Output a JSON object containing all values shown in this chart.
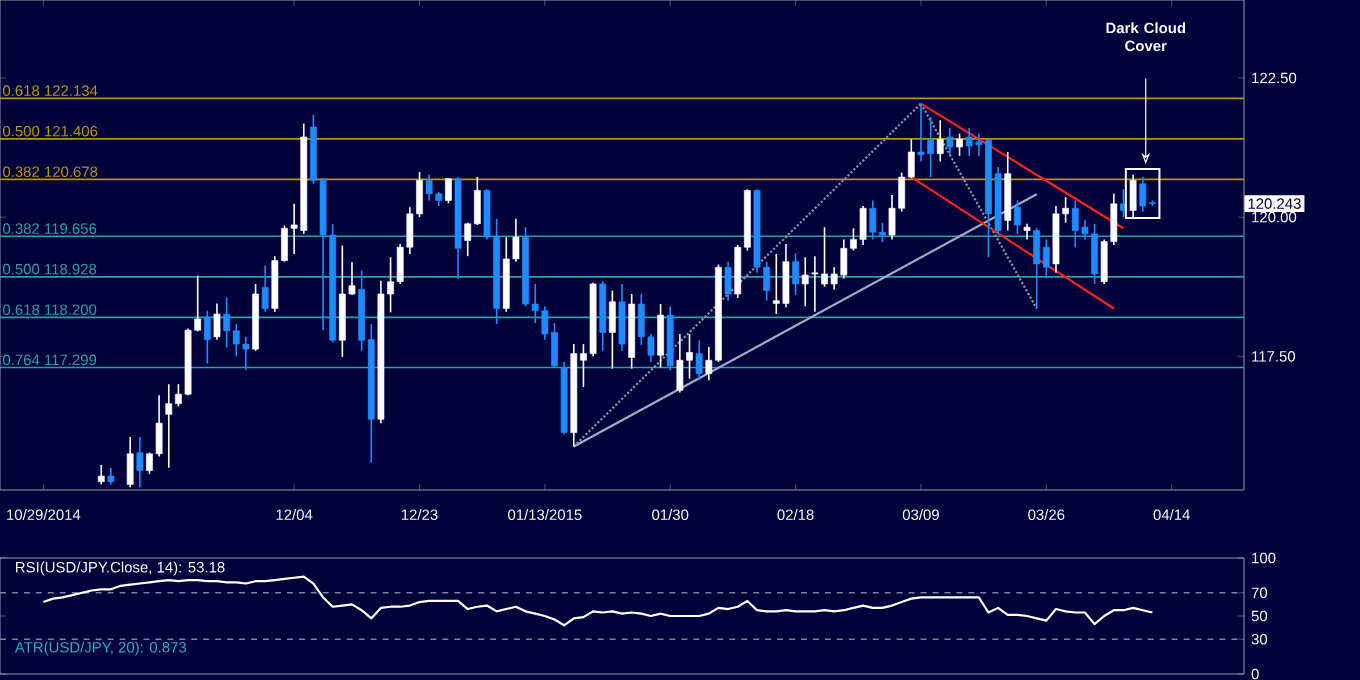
{
  "chart_data": [
    {
      "type": "candlestick",
      "categories": [
        "10/29/2014",
        null,
        null,
        null,
        null,
        null,
        null,
        null,
        null,
        null,
        null,
        null,
        null,
        null,
        null,
        null,
        null,
        null,
        null,
        null,
        null,
        null,
        null,
        null,
        null,
        null,
        "12/04",
        null,
        null,
        null,
        null,
        null,
        null,
        null,
        null,
        null,
        null,
        null,
        null,
        "12/23",
        null,
        null,
        null,
        null,
        null,
        null,
        null,
        null,
        null,
        null,
        null,
        null,
        "01/13/2015",
        null,
        null,
        null,
        null,
        null,
        null,
        null,
        null,
        null,
        null,
        null,
        null,
        "01/30",
        null,
        null,
        null,
        null,
        null,
        null,
        null,
        null,
        null,
        null,
        null,
        null,
        "02/18",
        null,
        null,
        null,
        null,
        null,
        null,
        null,
        null,
        null,
        null,
        null,
        null,
        "03/09",
        null,
        null,
        null,
        null,
        null,
        null,
        null,
        null,
        null,
        null,
        null,
        null,
        "03/26",
        null,
        null,
        null,
        null,
        null,
        null,
        null,
        null,
        null,
        null,
        null,
        null,
        "04/14",
        null,
        null,
        null,
        null,
        null,
        null,
        null
      ],
      "ohlc": [
        null,
        null,
        null,
        null,
        null,
        null,
        [
          115.25,
          115.55,
          115.2,
          115.35
        ],
        [
          115.35,
          115.5,
          115.2,
          115.25
        ],
        null,
        [
          115.2,
          116.05,
          115.15,
          115.75
        ],
        [
          115.77,
          116.05,
          115.15,
          115.45
        ],
        [
          115.45,
          115.77,
          115.39,
          115.75
        ],
        [
          115.75,
          116.8,
          115.7,
          116.3
        ],
        [
          116.46,
          117.0,
          115.5,
          116.65
        ],
        [
          116.65,
          117.0,
          116.6,
          116.82
        ],
        [
          116.82,
          118.0,
          116.8,
          117.97
        ],
        [
          117.97,
          118.95,
          117.95,
          118.17
        ],
        [
          118.2,
          118.32,
          117.37,
          117.8
        ],
        [
          117.85,
          118.45,
          117.8,
          118.26
        ],
        [
          118.26,
          118.56,
          117.66,
          117.96
        ],
        [
          117.96,
          118.08,
          117.5,
          117.72
        ],
        [
          117.72,
          117.85,
          117.25,
          117.63
        ],
        [
          117.63,
          118.8,
          117.6,
          118.62
        ],
        [
          118.74,
          119.13,
          118.3,
          118.36
        ],
        [
          118.36,
          119.3,
          118.3,
          119.22
        ],
        [
          119.22,
          119.85,
          119.2,
          119.8
        ],
        [
          119.8,
          120.24,
          119.34,
          119.86
        ],
        [
          119.76,
          121.68,
          119.7,
          121.44
        ],
        [
          121.62,
          121.84,
          120.6,
          120.66
        ],
        [
          120.66,
          120.7,
          117.97,
          119.68
        ],
        [
          119.68,
          119.88,
          117.75,
          117.79
        ],
        [
          117.79,
          119.49,
          117.49,
          118.62
        ],
        [
          118.62,
          119.19,
          118.6,
          118.77
        ],
        [
          118.7,
          119.04,
          117.6,
          117.79
        ],
        [
          117.8,
          118.08,
          115.59,
          116.37
        ],
        [
          116.37,
          118.86,
          116.3,
          118.62
        ],
        [
          118.62,
          119.28,
          118.29,
          118.84
        ],
        [
          118.84,
          119.52,
          118.8,
          119.46
        ],
        [
          119.46,
          120.18,
          119.34,
          120.06
        ],
        [
          120.06,
          120.81,
          120.0,
          120.66
        ],
        [
          120.66,
          120.76,
          120.3,
          120.42
        ],
        [
          120.42,
          120.45,
          120.2,
          120.3
        ],
        [
          120.3,
          120.7,
          120.25,
          120.69
        ],
        [
          120.69,
          120.72,
          118.89,
          119.44
        ],
        [
          119.58,
          119.9,
          119.3,
          119.88
        ],
        [
          119.88,
          120.72,
          119.86,
          120.48
        ],
        [
          120.48,
          120.5,
          119.6,
          119.64
        ],
        [
          119.64,
          119.97,
          118.08,
          118.36
        ],
        [
          118.36,
          119.64,
          118.3,
          119.25
        ],
        [
          119.25,
          119.97,
          119.2,
          119.64
        ],
        [
          119.64,
          119.82,
          118.4,
          118.44
        ],
        [
          118.44,
          118.8,
          118.1,
          118.32
        ],
        [
          118.32,
          118.4,
          117.8,
          117.9
        ],
        [
          117.93,
          118.1,
          117.3,
          117.33
        ],
        [
          117.3,
          117.4,
          116.1,
          116.13
        ],
        [
          116.13,
          117.72,
          115.88,
          117.55
        ],
        [
          117.43,
          117.72,
          116.95,
          117.55
        ],
        [
          117.55,
          118.82,
          117.5,
          118.8
        ],
        [
          118.8,
          118.85,
          117.6,
          117.93
        ],
        [
          117.93,
          118.68,
          117.28,
          118.48
        ],
        [
          118.48,
          118.8,
          117.6,
          117.72
        ],
        [
          117.48,
          118.62,
          117.28,
          118.44
        ],
        [
          118.44,
          118.62,
          117.7,
          117.85
        ],
        [
          117.85,
          117.9,
          117.4,
          117.52
        ],
        [
          117.52,
          118.44,
          117.3,
          118.24
        ],
        [
          118.24,
          118.4,
          117.25,
          117.33
        ],
        [
          116.89,
          117.9,
          116.85,
          117.43
        ],
        [
          117.43,
          117.9,
          117.1,
          117.57
        ],
        [
          117.55,
          117.79,
          117.07,
          117.19
        ],
        [
          117.19,
          117.67,
          117.07,
          117.43
        ],
        [
          117.43,
          119.15,
          117.4,
          119.1
        ],
        [
          119.1,
          119.2,
          118.5,
          118.62
        ],
        [
          118.62,
          119.5,
          118.55,
          119.46
        ],
        [
          119.46,
          120.5,
          119.4,
          120.48
        ],
        [
          120.48,
          120.5,
          119.0,
          119.1
        ],
        [
          119.1,
          119.2,
          118.5,
          118.68
        ],
        [
          118.45,
          119.34,
          118.26,
          118.5
        ],
        [
          118.45,
          119.52,
          118.38,
          119.2
        ],
        [
          119.2,
          119.35,
          118.6,
          118.8
        ],
        [
          118.8,
          119.28,
          118.4,
          118.96
        ],
        [
          118.98,
          119.3,
          118.3,
          119.0
        ],
        [
          118.8,
          119.82,
          118.75,
          118.98
        ],
        [
          118.8,
          119.1,
          118.7,
          118.98
        ],
        [
          118.96,
          119.6,
          118.9,
          119.44
        ],
        [
          119.44,
          119.8,
          119.4,
          119.6
        ],
        [
          119.6,
          120.2,
          119.5,
          120.16
        ],
        [
          120.16,
          120.3,
          119.6,
          119.73
        ],
        [
          119.73,
          119.9,
          119.55,
          119.68
        ],
        [
          119.68,
          120.4,
          119.6,
          120.16
        ],
        [
          120.16,
          120.8,
          120.1,
          120.72
        ],
        [
          120.72,
          121.4,
          120.7,
          121.17
        ],
        [
          121.17,
          122.04,
          121.0,
          121.12
        ],
        [
          121.4,
          121.8,
          120.72,
          121.14
        ],
        [
          121.14,
          121.74,
          121.0,
          121.4
        ],
        [
          121.44,
          121.6,
          121.1,
          121.26
        ],
        [
          121.26,
          121.5,
          121.1,
          121.4
        ],
        [
          121.44,
          121.6,
          121.1,
          121.28
        ],
        [
          121.35,
          121.5,
          121.1,
          121.3
        ],
        [
          121.38,
          121.4,
          119.28,
          120.06
        ],
        [
          120.78,
          120.9,
          119.7,
          119.76
        ],
        [
          119.94,
          121.17,
          119.76,
          120.78
        ],
        [
          120.18,
          120.3,
          119.7,
          119.86
        ],
        [
          119.76,
          119.88,
          119.6,
          119.82
        ],
        [
          119.76,
          119.8,
          118.36,
          119.16
        ],
        [
          119.46,
          119.6,
          118.9,
          119.1
        ],
        [
          119.16,
          120.2,
          119.0,
          120.06
        ],
        [
          120.06,
          120.36,
          119.9,
          120.16
        ],
        [
          120.16,
          120.3,
          119.46,
          119.76
        ],
        [
          119.82,
          119.95,
          119.6,
          119.7
        ],
        [
          119.7,
          119.88,
          118.8,
          118.98
        ],
        [
          118.84,
          119.6,
          118.8,
          119.56
        ],
        [
          119.56,
          120.42,
          119.5,
          120.24
        ],
        [
          120.24,
          120.5,
          120.0,
          120.12
        ],
        [
          120.12,
          120.76,
          120.0,
          120.66
        ],
        [
          120.6,
          120.72,
          120.1,
          120.2
        ],
        [
          120.26,
          120.3,
          120.2,
          120.243
        ],
        null,
        null,
        null,
        null,
        null,
        null,
        null,
        null,
        null
      ],
      "series": [
        {
          "type": "line",
          "color": "#a8a8c8",
          "line_style": "solid",
          "values": [
            null,
            null,
            null,
            null,
            null,
            null,
            null,
            null,
            null,
            null,
            null,
            null,
            null,
            null,
            null,
            null,
            null,
            null,
            null,
            null,
            null,
            null,
            null,
            null,
            null,
            null,
            null,
            null,
            null,
            null,
            null,
            null,
            null,
            null,
            null,
            null,
            null,
            null,
            null,
            null,
            null,
            null,
            null,
            null,
            null,
            null,
            null,
            null,
            null,
            null,
            null,
            null,
            null,
            null,
            null,
            115.88,
            null,
            null,
            null,
            null,
            null,
            null,
            null,
            null,
            null,
            null,
            null,
            null,
            null,
            null,
            null,
            null,
            null,
            null,
            null,
            null,
            null,
            null,
            null,
            null,
            null,
            null,
            null,
            null,
            null,
            null,
            null,
            null,
            null,
            null,
            null,
            null,
            null,
            null,
            null,
            null,
            null,
            null,
            null,
            null,
            null,
            null,
            null,
            120.41,
            null,
            null,
            null,
            null,
            null,
            null,
            null,
            null,
            null,
            null,
            null,
            null,
            null,
            null,
            null,
            null,
            null,
            null,
            null,
            null,
            null
          ]
        },
        {
          "type": "line",
          "color": "#9090a8",
          "line_style": "dotted",
          "values": [
            null,
            null,
            null,
            null,
            null,
            null,
            null,
            null,
            null,
            null,
            null,
            null,
            null,
            null,
            null,
            null,
            null,
            null,
            null,
            null,
            null,
            null,
            null,
            null,
            null,
            null,
            null,
            null,
            null,
            null,
            null,
            null,
            null,
            null,
            null,
            null,
            null,
            null,
            null,
            null,
            null,
            null,
            null,
            null,
            null,
            null,
            null,
            null,
            null,
            null,
            null,
            null,
            null,
            null,
            null,
            115.88,
            null,
            null,
            null,
            null,
            null,
            null,
            null,
            null,
            null,
            null,
            null,
            null,
            null,
            null,
            null,
            null,
            null,
            null,
            null,
            null,
            null,
            null,
            null,
            null,
            null,
            null,
            null,
            null,
            null,
            null,
            null,
            null,
            null,
            null,
            null,
            122.04,
            null,
            null,
            null,
            null,
            null,
            null,
            null,
            null,
            null,
            null,
            null,
            null,
            null,
            null,
            null,
            null,
            null,
            null,
            null,
            null,
            null,
            null,
            null,
            null,
            null,
            null,
            null,
            null,
            null,
            null,
            null,
            null,
            null
          ]
        },
        {
          "type": "line",
          "color": "#9090a8",
          "line_style": "dotted",
          "values": [
            null,
            null,
            null,
            null,
            null,
            null,
            null,
            null,
            null,
            null,
            null,
            null,
            null,
            null,
            null,
            null,
            null,
            null,
            null,
            null,
            null,
            null,
            null,
            null,
            null,
            null,
            null,
            null,
            null,
            null,
            null,
            null,
            null,
            null,
            null,
            null,
            null,
            null,
            null,
            null,
            null,
            null,
            null,
            null,
            null,
            null,
            null,
            null,
            null,
            null,
            null,
            null,
            null,
            null,
            null,
            null,
            null,
            null,
            null,
            null,
            null,
            null,
            null,
            null,
            null,
            null,
            null,
            null,
            null,
            null,
            null,
            null,
            null,
            null,
            null,
            null,
            null,
            null,
            null,
            null,
            null,
            null,
            null,
            null,
            null,
            null,
            null,
            null,
            null,
            null,
            null,
            122.04,
            null,
            null,
            null,
            null,
            null,
            null,
            null,
            null,
            null,
            null,
            null,
            118.36,
            null,
            null,
            null,
            null,
            null,
            null,
            null,
            null,
            null,
            null,
            null,
            null,
            null,
            null,
            null,
            null,
            null,
            null,
            null,
            null,
            null
          ]
        },
        {
          "type": "line",
          "color": "#ff2020",
          "line_style": "solid",
          "values": [
            null,
            null,
            null,
            null,
            null,
            null,
            null,
            null,
            null,
            null,
            null,
            null,
            null,
            null,
            null,
            null,
            null,
            null,
            null,
            null,
            null,
            null,
            null,
            null,
            null,
            null,
            null,
            null,
            null,
            null,
            null,
            null,
            null,
            null,
            null,
            null,
            null,
            null,
            null,
            null,
            null,
            null,
            null,
            null,
            null,
            null,
            null,
            null,
            null,
            null,
            null,
            null,
            null,
            null,
            null,
            null,
            null,
            null,
            null,
            null,
            null,
            null,
            null,
            null,
            null,
            null,
            null,
            null,
            null,
            null,
            null,
            null,
            null,
            null,
            null,
            null,
            null,
            null,
            null,
            null,
            null,
            null,
            null,
            null,
            null,
            null,
            null,
            null,
            null,
            null,
            null,
            122.04,
            null,
            null,
            null,
            null,
            null,
            null,
            null,
            null,
            null,
            null,
            null,
            null,
            null,
            null,
            null,
            null,
            null,
            null,
            null,
            null,
            119.8,
            null,
            null,
            null,
            null,
            null,
            null,
            null,
            null,
            null,
            null,
            null,
            null
          ]
        },
        {
          "type": "line",
          "color": "#ff2020",
          "line_style": "solid",
          "values": [
            null,
            null,
            null,
            null,
            null,
            null,
            null,
            null,
            null,
            null,
            null,
            null,
            null,
            null,
            null,
            null,
            null,
            null,
            null,
            null,
            null,
            null,
            null,
            null,
            null,
            null,
            null,
            null,
            null,
            null,
            null,
            null,
            null,
            null,
            null,
            null,
            null,
            null,
            null,
            null,
            null,
            null,
            null,
            null,
            null,
            null,
            null,
            null,
            null,
            null,
            null,
            null,
            null,
            null,
            null,
            null,
            null,
            null,
            null,
            null,
            null,
            null,
            null,
            null,
            null,
            null,
            null,
            null,
            null,
            null,
            null,
            null,
            null,
            null,
            null,
            null,
            null,
            null,
            null,
            null,
            null,
            null,
            null,
            null,
            null,
            null,
            null,
            null,
            null,
            null,
            120.72,
            null,
            null,
            null,
            null,
            null,
            null,
            null,
            null,
            null,
            null,
            null,
            null,
            null,
            null,
            null,
            null,
            null,
            null,
            null,
            null,
            118.36,
            null,
            null,
            null,
            null,
            null,
            null,
            null,
            null,
            null,
            null,
            null,
            null,
            null
          ]
        }
      ],
      "ylim": [
        115.1,
        123.9
      ],
      "yticks": [
        {
          "value": 117.5,
          "label": "117.50"
        },
        {
          "value": 120,
          "label": "120.00"
        },
        {
          "value": 122.5,
          "label": "122.50"
        }
      ],
      "ref_lines": [
        {
          "axis": "y",
          "value": 122.134,
          "label": "0.618 122.134",
          "color": "#b8960b"
        },
        {
          "axis": "y",
          "value": 121.406,
          "label": "0.500 121.406",
          "color": "#b8960b"
        },
        {
          "axis": "y",
          "value": 120.678,
          "label": "0.382 120.678",
          "color": "#b8960b"
        },
        {
          "axis": "y",
          "value": 119.656,
          "label": "0.382 119.656",
          "color": "#2aa0a0"
        },
        {
          "axis": "y",
          "value": 118.928,
          "label": "0.500 118.928",
          "color": "#2aa0a0"
        },
        {
          "axis": "y",
          "value": 118.2,
          "label": "0.618 118.200",
          "color": "#2aa0a0"
        },
        {
          "axis": "y",
          "value": 117.299,
          "label": "0.764 117.299",
          "color": "#2aa0a0"
        }
      ],
      "annotations": [
        "Dark Cloud Cover",
        "120.243"
      ]
    },
    {
      "type": "line",
      "title": "RSI(USD/JPY.Close, 14): 53.18",
      "categories": [
        null,
        null,
        null,
        null,
        null,
        null,
        null,
        null,
        null,
        null,
        null,
        null,
        null,
        null,
        null,
        null,
        null,
        null,
        null,
        null,
        null,
        null,
        null,
        null,
        null,
        null,
        null,
        null,
        null,
        null,
        null,
        null,
        null,
        null,
        null,
        null,
        null,
        null,
        null,
        null,
        null,
        null,
        null,
        null,
        null,
        null,
        null,
        null,
        null,
        null,
        null,
        null,
        null,
        null,
        null,
        null,
        null,
        null,
        null,
        null,
        null,
        null,
        null,
        null,
        null,
        null,
        null,
        null,
        null,
        null,
        null,
        null,
        null,
        null,
        null,
        null,
        null,
        null,
        null,
        null,
        null,
        null,
        null,
        null,
        null,
        null,
        null,
        null,
        null,
        null,
        null,
        null,
        null,
        null,
        null,
        null,
        null,
        null,
        null,
        null,
        null,
        null,
        null,
        null,
        null,
        null,
        null,
        null,
        null,
        null,
        null,
        null,
        null,
        null,
        null,
        null,
        null,
        null,
        null,
        null,
        null,
        null,
        null,
        null,
        null
      ],
      "series": [
        {
          "color": "#ffffff",
          "values": [
            62,
            65,
            66,
            68,
            70,
            72,
            73,
            73,
            76,
            77,
            78,
            79,
            80,
            81,
            80,
            81,
            81,
            80,
            80,
            79,
            79,
            78,
            80,
            80,
            81,
            82,
            83,
            84,
            78,
            66,
            58,
            59,
            60,
            55,
            48,
            57,
            58,
            58,
            59,
            62,
            63,
            63,
            63,
            63,
            56,
            58,
            59,
            54,
            56,
            58,
            54,
            52,
            50,
            47,
            42,
            48,
            49,
            54,
            53,
            54,
            52,
            53,
            52,
            50,
            52,
            50,
            50,
            50,
            50,
            52,
            57,
            56,
            58,
            63,
            55,
            54,
            54,
            55,
            54,
            54,
            54,
            55,
            54,
            55,
            57,
            59,
            57,
            57,
            59,
            62,
            65,
            66,
            66,
            66,
            66,
            66,
            66,
            66,
            53,
            57,
            51,
            51,
            50,
            48,
            46,
            56,
            54,
            53,
            53,
            43,
            50,
            55,
            55,
            57,
            55,
            53,
            null,
            null,
            null,
            null,
            null,
            null,
            null,
            null,
            null
          ]
        }
      ],
      "ylim": [
        0,
        100
      ],
      "yticks": [
        0,
        30,
        50,
        70,
        100
      ],
      "tick_labels": "y",
      "ref_lines": [
        {
          "axis": "y",
          "value": 70,
          "color": "#8080a0",
          "line_style": "dashed"
        },
        {
          "axis": "y",
          "value": 30,
          "color": "#8080a0",
          "line_style": "dashed"
        }
      ],
      "annotations": [
        "ATR(USD/JPY, 20): 0.873"
      ]
    }
  ]
}
